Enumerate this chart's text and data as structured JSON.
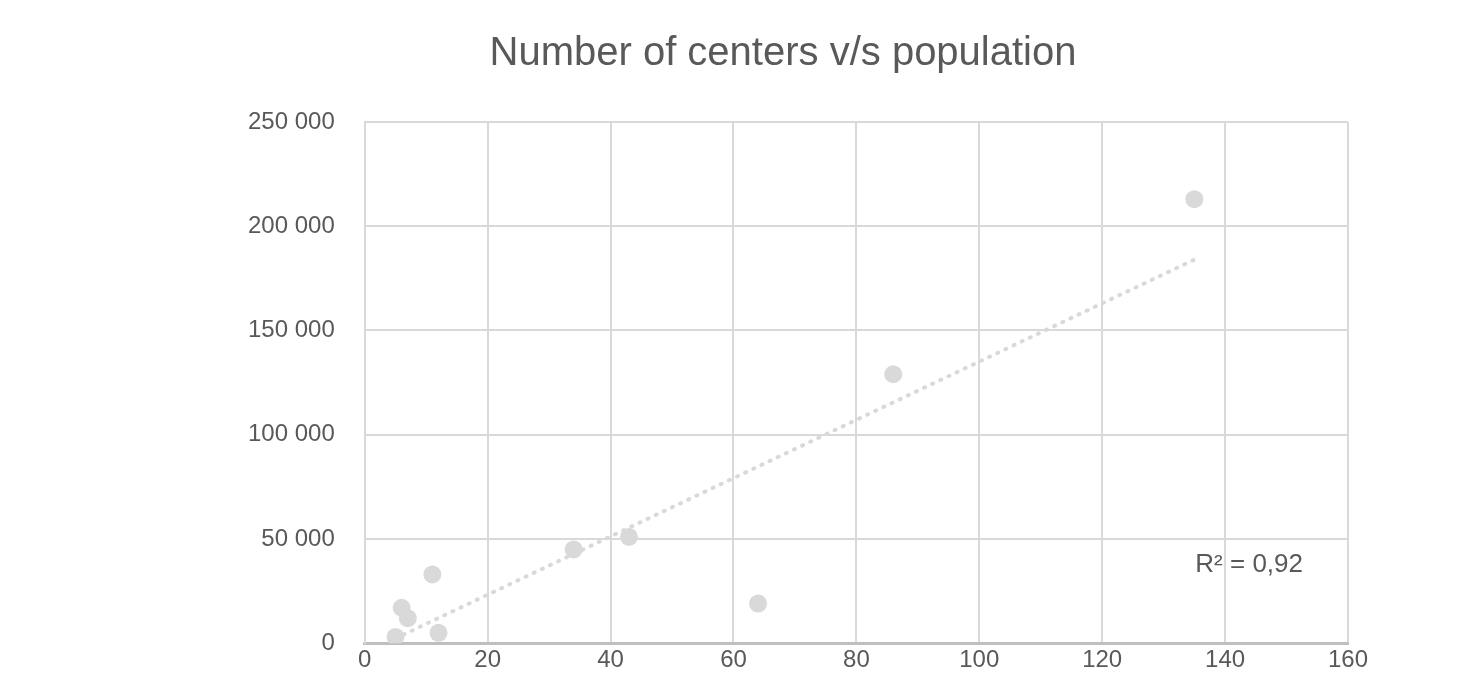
{
  "chart_data": {
    "type": "scatter",
    "title": "Number of centers v/s population",
    "series": [
      {
        "color": "#d9d9d9",
        "marker": "circle",
        "x": [
          135,
          86,
          64,
          43,
          34,
          11,
          6,
          7,
          5,
          12
        ],
        "values": [
          213000,
          129000,
          19000,
          51000,
          45000,
          33000,
          17000,
          12000,
          3000,
          5000
        ]
      },
      {
        "type": "line",
        "color": "#d9d9d9",
        "line_style": "dotted",
        "marker": "none",
        "x": [
          5,
          135
        ],
        "values": [
          2300,
          184000
        ]
      }
    ],
    "xlim": [
      0,
      160
    ],
    "xticks": [
      0,
      20,
      40,
      60,
      80,
      100,
      120,
      140,
      160
    ],
    "ylim": [
      0,
      250000
    ],
    "yticks": [
      0,
      {
        "value": 50000,
        "label": "50 000"
      },
      {
        "value": 100000,
        "label": "100 000"
      },
      {
        "value": 150000,
        "label": "150 000"
      },
      {
        "value": 200000,
        "label": "200 000"
      },
      {
        "value": 250000,
        "label": "250 000"
      }
    ],
    "grid": true,
    "legend": false,
    "annotations": [
      "R² = 0,92"
    ]
  }
}
